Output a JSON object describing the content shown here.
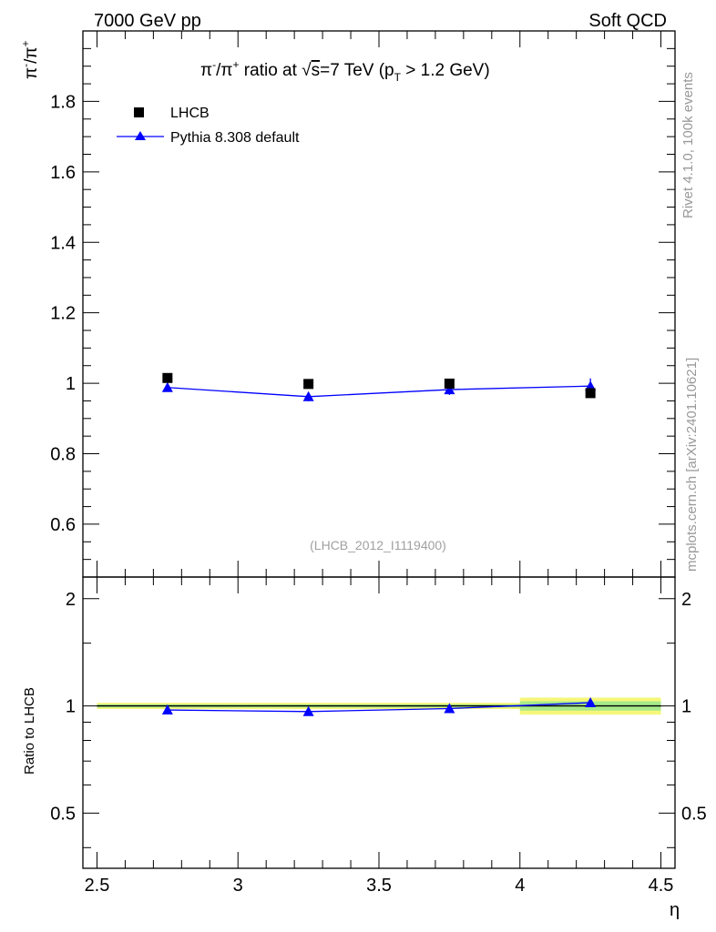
{
  "header": {
    "left": "7000 GeV pp",
    "right": "Soft QCD"
  },
  "side": {
    "rivet": "Rivet 4.1.0,  100k events",
    "mcplots": "mcplots.cern.ch [arXiv:2401.10621]"
  },
  "chart_data": [
    {
      "type": "scatter",
      "title_parts": {
        "prefix": "π",
        "minus": "-",
        "slash": "/π",
        "plus": "+",
        "mid": " ratio at ",
        "sqrt": "√",
        "s": "s",
        "energy": "=7 TeV (p",
        "sub": "T",
        "cut": " > 1.2 GeV)"
      },
      "ylabel_parts": {
        "a": "π",
        "b": "-",
        "c": "/π",
        "d": "+"
      },
      "xlabel": "η",
      "watermark": "(LHCB_2012_I1119400)",
      "xlim": [
        2.45,
        4.55
      ],
      "ylim": [
        0.45,
        2.0
      ],
      "yticks": [
        0.6,
        0.8,
        1.0,
        1.2,
        1.4,
        1.6,
        1.8
      ],
      "ytick_labels": [
        "0.6",
        "0.8",
        "1",
        "1.2",
        "1.4",
        "1.6",
        "1.8"
      ],
      "legend_position": "top-left",
      "series": [
        {
          "name": "LHCB",
          "marker": "square",
          "color": "#000000",
          "x": [
            2.75,
            3.25,
            3.75,
            4.25
          ],
          "y": [
            1.015,
            0.998,
            0.999,
            0.972
          ],
          "yerr": [
            0.005,
            0.005,
            0.005,
            0.005
          ]
        },
        {
          "name": "Pythia 8.308 default",
          "marker": "triangle",
          "color": "#0000ff",
          "x": [
            2.75,
            3.25,
            3.75,
            4.25
          ],
          "y": [
            0.988,
            0.962,
            0.982,
            0.992
          ],
          "yerr": [
            0.012,
            0.013,
            0.015,
            0.022
          ]
        }
      ]
    },
    {
      "type": "scatter",
      "ylabel": "Ratio to LHCB",
      "xlim": [
        2.45,
        4.55
      ],
      "ylim": [
        0.35,
        2.3
      ],
      "xticks": [
        2.5,
        3.0,
        3.5,
        4.0,
        4.5
      ],
      "xtick_labels": [
        "2.5",
        "3",
        "3.5",
        "4",
        "4.5"
      ],
      "yticks": [
        0.5,
        1.0,
        2.0
      ],
      "ytick_labels": [
        "0.5",
        "1",
        "2"
      ],
      "reference_line": 1.0,
      "band": {
        "x_edges": [
          2.5,
          3.0,
          3.5,
          4.0,
          4.5
        ],
        "yellow_half": [
          0.02,
          0.02,
          0.02,
          0.055
        ],
        "green_half": [
          0.01,
          0.01,
          0.01,
          0.03
        ]
      },
      "series": [
        {
          "name": "Pythia 8.308 default / LHCB",
          "marker": "triangle",
          "color": "#0000ff",
          "x": [
            2.75,
            3.25,
            3.75,
            4.25
          ],
          "y": [
            0.974,
            0.964,
            0.983,
            1.021
          ]
        }
      ]
    }
  ]
}
